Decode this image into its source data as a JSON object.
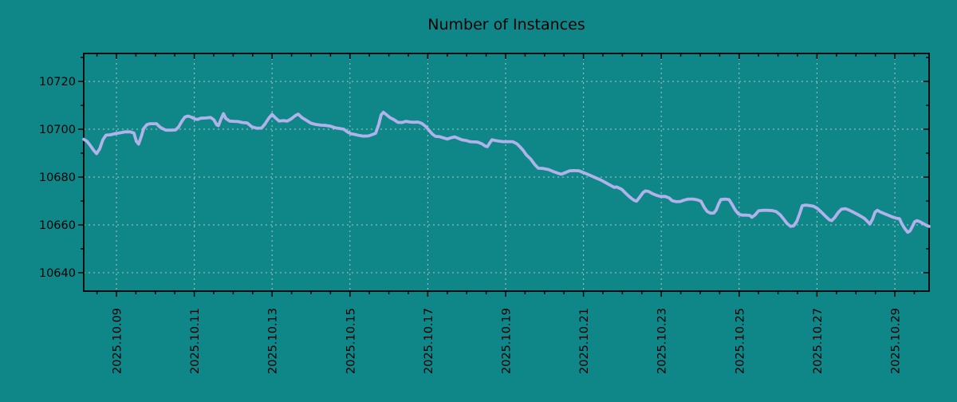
{
  "page": {
    "title": "Number of Instances"
  },
  "chart_data": {
    "type": "line",
    "title": "Number of Instances",
    "xlabel": "",
    "ylabel": "",
    "grid": true,
    "legend_position": "none",
    "colors": {
      "background": "#0f8789",
      "line": "#b2b2eb",
      "grid": "#bfcccc",
      "axis": "#000000",
      "text": "#000000"
    },
    "x_axis": {
      "unit": "date",
      "tick_days": [
        9,
        11,
        13,
        15,
        17,
        19,
        21,
        23,
        25,
        27,
        29
      ],
      "tick_labels": [
        "2025.10.09",
        "2025.10.11",
        "2025.10.13",
        "2025.10.15",
        "2025.10.17",
        "2025.10.19",
        "2025.10.21",
        "2025.10.23",
        "2025.10.25",
        "2025.10.27",
        "2025.10.29"
      ],
      "minor_step_days": 0.5,
      "lim_days": [
        8.16,
        29.88
      ]
    },
    "y_axis": {
      "ticks": [
        10640,
        10660,
        10680,
        10700,
        10720
      ],
      "minor_step": 10,
      "lim": [
        10632.3,
        10731.7
      ]
    },
    "series": [
      {
        "name": "instances",
        "color": "#b2b2eb",
        "points": [
          [
            8.16,
            10695.8
          ],
          [
            8.24,
            10695.0
          ],
          [
            8.32,
            10693.4
          ],
          [
            8.41,
            10691.3
          ],
          [
            8.49,
            10689.8
          ],
          [
            8.57,
            10691.8
          ],
          [
            8.65,
            10695.5
          ],
          [
            8.73,
            10697.5
          ],
          [
            8.86,
            10697.7
          ],
          [
            8.98,
            10698.2
          ],
          [
            9.1,
            10698.5
          ],
          [
            9.23,
            10698.9
          ],
          [
            9.35,
            10698.9
          ],
          [
            9.45,
            10698.4
          ],
          [
            9.51,
            10695.0
          ],
          [
            9.57,
            10693.8
          ],
          [
            9.64,
            10697.0
          ],
          [
            9.7,
            10700.3
          ],
          [
            9.78,
            10701.9
          ],
          [
            9.86,
            10702.3
          ],
          [
            9.94,
            10702.3
          ],
          [
            10.03,
            10702.3
          ],
          [
            10.11,
            10701.0
          ],
          [
            10.19,
            10700.2
          ],
          [
            10.27,
            10699.6
          ],
          [
            10.39,
            10699.6
          ],
          [
            10.52,
            10699.7
          ],
          [
            10.6,
            10701.0
          ],
          [
            10.68,
            10703.3
          ],
          [
            10.76,
            10705.1
          ],
          [
            10.84,
            10705.5
          ],
          [
            10.93,
            10705.0
          ],
          [
            11.03,
            10704.2
          ],
          [
            11.09,
            10704.1
          ],
          [
            11.17,
            10704.6
          ],
          [
            11.3,
            10704.7
          ],
          [
            11.42,
            10704.9
          ],
          [
            11.5,
            10704.0
          ],
          [
            11.58,
            10701.8
          ],
          [
            11.62,
            10701.5
          ],
          [
            11.68,
            10704.0
          ],
          [
            11.75,
            10706.5
          ],
          [
            11.81,
            10704.5
          ],
          [
            11.91,
            10703.4
          ],
          [
            12.01,
            10703.3
          ],
          [
            12.12,
            10703.2
          ],
          [
            12.24,
            10702.8
          ],
          [
            12.36,
            10702.6
          ],
          [
            12.48,
            10701.0
          ],
          [
            12.61,
            10700.4
          ],
          [
            12.73,
            10700.5
          ],
          [
            12.81,
            10702.0
          ],
          [
            12.91,
            10704.5
          ],
          [
            13.0,
            10706.2
          ],
          [
            13.08,
            10704.8
          ],
          [
            13.18,
            10703.4
          ],
          [
            13.28,
            10703.6
          ],
          [
            13.39,
            10703.4
          ],
          [
            13.49,
            10704.3
          ],
          [
            13.59,
            10705.6
          ],
          [
            13.67,
            10706.3
          ],
          [
            13.77,
            10704.8
          ],
          [
            13.88,
            10703.7
          ],
          [
            14.0,
            10702.5
          ],
          [
            14.12,
            10702.0
          ],
          [
            14.25,
            10701.7
          ],
          [
            14.37,
            10701.6
          ],
          [
            14.49,
            10701.3
          ],
          [
            14.62,
            10700.6
          ],
          [
            14.74,
            10700.3
          ],
          [
            14.84,
            10700.0
          ],
          [
            14.94,
            10698.8
          ],
          [
            15.03,
            10698.1
          ],
          [
            15.13,
            10697.8
          ],
          [
            15.23,
            10697.4
          ],
          [
            15.35,
            10697.1
          ],
          [
            15.48,
            10697.2
          ],
          [
            15.58,
            10697.8
          ],
          [
            15.66,
            10698.3
          ],
          [
            15.74,
            10702.0
          ],
          [
            15.8,
            10706.0
          ],
          [
            15.86,
            10707.1
          ],
          [
            15.95,
            10705.9
          ],
          [
            16.03,
            10704.8
          ],
          [
            16.13,
            10704.0
          ],
          [
            16.23,
            10702.9
          ],
          [
            16.34,
            10702.8
          ],
          [
            16.44,
            10703.3
          ],
          [
            16.54,
            10703.0
          ],
          [
            16.64,
            10702.9
          ],
          [
            16.75,
            10703.0
          ],
          [
            16.85,
            10702.4
          ],
          [
            16.95,
            10701.1
          ],
          [
            17.03,
            10699.6
          ],
          [
            17.12,
            10697.9
          ],
          [
            17.2,
            10697.0
          ],
          [
            17.3,
            10696.9
          ],
          [
            17.4,
            10696.4
          ],
          [
            17.5,
            10695.9
          ],
          [
            17.59,
            10696.4
          ],
          [
            17.69,
            10696.8
          ],
          [
            17.77,
            10696.3
          ],
          [
            17.87,
            10695.6
          ],
          [
            17.98,
            10695.3
          ],
          [
            18.08,
            10694.8
          ],
          [
            18.18,
            10694.7
          ],
          [
            18.28,
            10694.6
          ],
          [
            18.39,
            10693.9
          ],
          [
            18.47,
            10693.0
          ],
          [
            18.53,
            10692.7
          ],
          [
            18.59,
            10694.2
          ],
          [
            18.65,
            10695.6
          ],
          [
            18.73,
            10695.3
          ],
          [
            18.84,
            10695.0
          ],
          [
            18.94,
            10694.8
          ],
          [
            19.06,
            10694.8
          ],
          [
            19.18,
            10694.8
          ],
          [
            19.29,
            10693.9
          ],
          [
            19.37,
            10692.6
          ],
          [
            19.45,
            10691.2
          ],
          [
            19.53,
            10689.3
          ],
          [
            19.64,
            10687.6
          ],
          [
            19.74,
            10685.4
          ],
          [
            19.84,
            10683.7
          ],
          [
            19.96,
            10683.6
          ],
          [
            20.09,
            10683.2
          ],
          [
            20.21,
            10682.4
          ],
          [
            20.33,
            10681.7
          ],
          [
            20.43,
            10681.2
          ],
          [
            20.54,
            10681.9
          ],
          [
            20.64,
            10682.6
          ],
          [
            20.76,
            10682.7
          ],
          [
            20.89,
            10682.6
          ],
          [
            20.99,
            10681.9
          ],
          [
            21.09,
            10681.3
          ],
          [
            21.19,
            10680.6
          ],
          [
            21.3,
            10679.8
          ],
          [
            21.4,
            10679.1
          ],
          [
            21.5,
            10678.3
          ],
          [
            21.6,
            10677.4
          ],
          [
            21.7,
            10676.5
          ],
          [
            21.79,
            10675.7
          ],
          [
            21.85,
            10675.9
          ],
          [
            21.93,
            10675.3
          ],
          [
            21.99,
            10674.8
          ],
          [
            22.07,
            10673.5
          ],
          [
            22.16,
            10672.1
          ],
          [
            22.24,
            10671.0
          ],
          [
            22.3,
            10670.3
          ],
          [
            22.36,
            10669.9
          ],
          [
            22.44,
            10671.5
          ],
          [
            22.53,
            10673.5
          ],
          [
            22.59,
            10674.2
          ],
          [
            22.67,
            10674.0
          ],
          [
            22.77,
            10673.1
          ],
          [
            22.87,
            10672.4
          ],
          [
            22.98,
            10671.9
          ],
          [
            23.1,
            10671.9
          ],
          [
            23.2,
            10671.3
          ],
          [
            23.28,
            10670.1
          ],
          [
            23.39,
            10669.7
          ],
          [
            23.49,
            10669.8
          ],
          [
            23.59,
            10670.4
          ],
          [
            23.69,
            10670.8
          ],
          [
            23.82,
            10670.8
          ],
          [
            23.92,
            10670.5
          ],
          [
            24.02,
            10669.9
          ],
          [
            24.1,
            10667.4
          ],
          [
            24.18,
            10665.6
          ],
          [
            24.27,
            10664.9
          ],
          [
            24.35,
            10665.0
          ],
          [
            24.41,
            10666.2
          ],
          [
            24.47,
            10668.7
          ],
          [
            24.53,
            10670.6
          ],
          [
            24.64,
            10670.8
          ],
          [
            24.74,
            10670.6
          ],
          [
            24.82,
            10668.5
          ],
          [
            24.9,
            10666.2
          ],
          [
            24.98,
            10664.6
          ],
          [
            25.07,
            10664.1
          ],
          [
            25.17,
            10664.1
          ],
          [
            25.27,
            10664.0
          ],
          [
            25.33,
            10663.2
          ],
          [
            25.41,
            10664.2
          ],
          [
            25.5,
            10665.9
          ],
          [
            25.6,
            10666.1
          ],
          [
            25.72,
            10666.1
          ],
          [
            25.84,
            10666.0
          ],
          [
            25.95,
            10665.6
          ],
          [
            26.05,
            10664.3
          ],
          [
            26.15,
            10662.3
          ],
          [
            26.23,
            10660.6
          ],
          [
            26.32,
            10659.4
          ],
          [
            26.4,
            10659.6
          ],
          [
            26.48,
            10661.5
          ],
          [
            26.56,
            10665.0
          ],
          [
            26.62,
            10668.0
          ],
          [
            26.7,
            10668.3
          ],
          [
            26.81,
            10668.1
          ],
          [
            26.91,
            10667.8
          ],
          [
            27.01,
            10666.9
          ],
          [
            27.11,
            10665.4
          ],
          [
            27.22,
            10663.6
          ],
          [
            27.32,
            10662.1
          ],
          [
            27.38,
            10661.8
          ],
          [
            27.46,
            10663.2
          ],
          [
            27.55,
            10665.3
          ],
          [
            27.63,
            10666.6
          ],
          [
            27.73,
            10666.8
          ],
          [
            27.81,
            10666.3
          ],
          [
            27.91,
            10665.5
          ],
          [
            28.02,
            10664.6
          ],
          [
            28.12,
            10663.7
          ],
          [
            28.22,
            10662.7
          ],
          [
            28.3,
            10661.4
          ],
          [
            28.36,
            10660.4
          ],
          [
            28.43,
            10662.5
          ],
          [
            28.49,
            10665.3
          ],
          [
            28.55,
            10666.1
          ],
          [
            28.63,
            10665.4
          ],
          [
            28.73,
            10664.7
          ],
          [
            28.84,
            10664.0
          ],
          [
            28.94,
            10663.3
          ],
          [
            29.04,
            10662.8
          ],
          [
            29.12,
            10662.6
          ],
          [
            29.18,
            10660.5
          ],
          [
            29.25,
            10658.6
          ],
          [
            29.33,
            10656.9
          ],
          [
            29.39,
            10657.5
          ],
          [
            29.45,
            10659.3
          ],
          [
            29.51,
            10661.3
          ],
          [
            29.57,
            10661.8
          ],
          [
            29.66,
            10661.2
          ],
          [
            29.74,
            10660.5
          ],
          [
            29.8,
            10659.9
          ],
          [
            29.88,
            10659.4
          ]
        ]
      }
    ]
  }
}
